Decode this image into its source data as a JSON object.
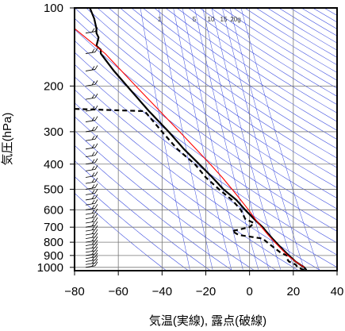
{
  "chart_data": {
    "type": "line",
    "title": "",
    "xlabel": "気温(実線), 露点(破線)",
    "ylabel": "気圧(hPa)",
    "xlim": [
      -80,
      40
    ],
    "ylim": [
      1030,
      100
    ],
    "y_scale": "log",
    "x_ticks": [
      -80,
      -60,
      -40,
      -20,
      0,
      20,
      40
    ],
    "y_ticks": [
      100,
      200,
      300,
      400,
      500,
      600,
      700,
      800,
      900,
      1000
    ],
    "y_tick_labels": [
      "100",
      "200",
      "300",
      "400",
      "500",
      "600",
      "700",
      "800",
      "900",
      "1000"
    ],
    "mixing_ratio_labels": [
      "1",
      "5",
      "10",
      "15",
      "20g"
    ],
    "grid": true,
    "series": [
      {
        "role": "temperature",
        "style": "solid",
        "color": "#000000",
        "pressure": [
          1025,
          1000,
          975,
          950,
          925,
          900,
          875,
          850,
          825,
          800,
          775,
          750,
          725,
          700,
          675,
          650,
          600,
          550,
          500,
          450,
          400,
          350,
          300,
          250,
          200,
          175,
          150,
          145,
          140,
          130,
          125,
          120,
          110,
          100
        ],
        "values": [
          26,
          25,
          23,
          21,
          19.5,
          18,
          16.5,
          15,
          13.5,
          12,
          10.5,
          9,
          7.5,
          6,
          4,
          2,
          -2,
          -6,
          -12,
          -17,
          -23,
          -30,
          -37,
          -46,
          -56,
          -62,
          -68,
          -68,
          -70,
          -69,
          -70,
          -70,
          -71,
          -73
        ]
      },
      {
        "role": "dewpoint",
        "style": "dashed",
        "color": "#000000",
        "pressure": [
          1025,
          1000,
          975,
          950,
          925,
          900,
          875,
          850,
          825,
          800,
          775,
          750,
          725,
          700,
          675,
          650,
          600,
          550,
          500,
          450,
          400,
          350,
          300,
          250,
          245
        ],
        "values": [
          25,
          22,
          21,
          18,
          17,
          17,
          14,
          12,
          10,
          8,
          6,
          -5,
          -8,
          0,
          2,
          -2,
          -4,
          -8,
          -14,
          -20,
          -25,
          -33,
          -40,
          -48,
          -80
        ]
      },
      {
        "role": "parcel",
        "style": "solid",
        "color": "#ff0000",
        "pressure": [
          1000,
          950,
          900,
          850,
          800,
          750,
          700,
          650,
          600,
          550,
          500,
          450,
          400,
          350,
          300,
          250,
          200,
          150,
          120
        ],
        "values": [
          25,
          21,
          17.5,
          14.5,
          11.5,
          8.5,
          5.5,
          2.5,
          -0.5,
          -4,
          -8,
          -12.5,
          -18,
          -24.5,
          -32,
          -41,
          -52,
          -66,
          -80
        ]
      }
    ]
  }
}
